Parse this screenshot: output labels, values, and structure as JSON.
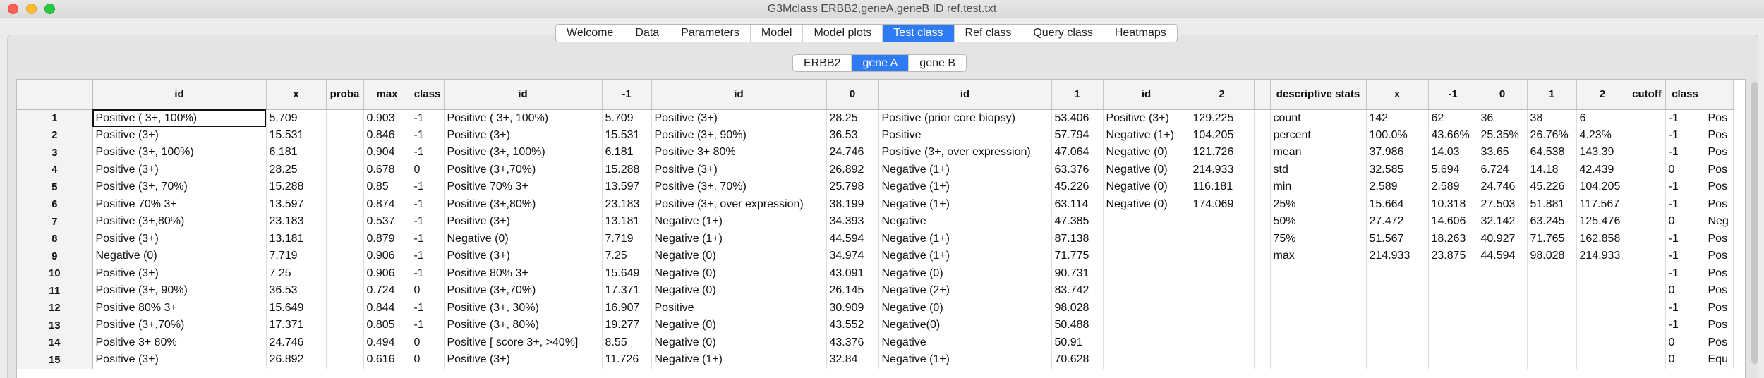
{
  "window": {
    "title": "G3Mclass ERBB2,geneA,geneB ID ref,test.txt"
  },
  "tabs": [
    {
      "label": "Welcome"
    },
    {
      "label": "Data"
    },
    {
      "label": "Parameters"
    },
    {
      "label": "Model"
    },
    {
      "label": "Model plots"
    },
    {
      "label": "Test class",
      "active": true
    },
    {
      "label": "Ref class"
    },
    {
      "label": "Query class"
    },
    {
      "label": "Heatmaps"
    }
  ],
  "subtabs": [
    {
      "label": "ERBB2"
    },
    {
      "label": "gene A",
      "active": true
    },
    {
      "label": "gene B"
    }
  ],
  "table": {
    "headers": [
      "",
      "id",
      "x",
      "proba",
      "max",
      "class",
      "id",
      "-1",
      "id",
      "0",
      "id",
      "1",
      "id",
      "2",
      "",
      "descriptive stats",
      "x",
      "-1",
      "0",
      "1",
      "2",
      "cutoff",
      "class",
      ""
    ],
    "rows": [
      [
        "1",
        "Positive ( 3+, 100%)",
        "5.709",
        "",
        "0.903",
        "-1",
        "Positive ( 3+, 100%)",
        "5.709",
        "Positive (3+)",
        "28.25",
        "Positive (prior core biopsy)",
        "53.406",
        "Positive (3+)",
        "129.225",
        "",
        "count",
        "142",
        "62",
        "36",
        "38",
        "6",
        "",
        "-1",
        "Pos"
      ],
      [
        "2",
        "Positive (3+)",
        "15.531",
        "",
        "0.846",
        "-1",
        "Positive (3+)",
        "15.531",
        "Positive (3+, 90%)",
        "36.53",
        "Positive",
        "57.794",
        "Negative (1+)",
        "104.205",
        "",
        "percent",
        "100.0%",
        "43.66%",
        "25.35%",
        "26.76%",
        "4.23%",
        "",
        "-1",
        "Pos"
      ],
      [
        "3",
        "Positive (3+, 100%)",
        "6.181",
        "",
        "0.904",
        "-1",
        "Positive (3+, 100%)",
        "6.181",
        "Positive 3+ 80%",
        "24.746",
        "Positive (3+, over expression)",
        "47.064",
        "Negative (0)",
        "121.726",
        "",
        "mean",
        "37.986",
        "14.03",
        "33.65",
        "64.538",
        "143.39",
        "",
        "-1",
        "Pos"
      ],
      [
        "4",
        "Positive (3+)",
        "28.25",
        "",
        "0.678",
        "0",
        "Positive (3+,70%)",
        "15.288",
        "Positive (3+)",
        "26.892",
        "Negative (1+)",
        "63.376",
        "Negative (0)",
        "214.933",
        "",
        "std",
        "32.585",
        "5.694",
        "6.724",
        "14.18",
        "42.439",
        "",
        "0",
        "Pos"
      ],
      [
        "5",
        "Positive (3+, 70%)",
        "15.288",
        "",
        "0.85",
        "-1",
        "Positive 70% 3+",
        "13.597",
        "Positive (3+, 70%)",
        "25.798",
        "Negative (1+)",
        "45.226",
        "Negative (0)",
        "116.181",
        "",
        "min",
        "2.589",
        "2.589",
        "24.746",
        "45.226",
        "104.205",
        "",
        "-1",
        "Pos"
      ],
      [
        "6",
        "Positive 70% 3+",
        "13.597",
        "",
        "0.874",
        "-1",
        "Positive (3+,80%)",
        "23.183",
        "Positive (3+, over expression)",
        "38.199",
        "Negative (1+)",
        "63.114",
        "Negative (0)",
        "174.069",
        "",
        "25%",
        "15.664",
        "10.318",
        "27.503",
        "51.881",
        "117.567",
        "",
        "-1",
        "Pos"
      ],
      [
        "7",
        "Positive (3+,80%)",
        "23.183",
        "",
        "0.537",
        "-1",
        "Positive (3+)",
        "13.181",
        "Negative (1+)",
        "34.393",
        "Negative",
        "47.385",
        "",
        "",
        "",
        "50%",
        "27.472",
        "14.606",
        "32.142",
        "63.245",
        "125.476",
        "",
        "0",
        "Neg"
      ],
      [
        "8",
        "Positive (3+)",
        "13.181",
        "",
        "0.879",
        "-1",
        "Negative (0)",
        "7.719",
        "Negative (1+)",
        "44.594",
        "Negative (1+)",
        "87.138",
        "",
        "",
        "",
        "75%",
        "51.567",
        "18.263",
        "40.927",
        "71.765",
        "162.858",
        "",
        "-1",
        "Pos"
      ],
      [
        "9",
        "Negative (0)",
        "7.719",
        "",
        "0.906",
        "-1",
        "Positive (3+)",
        "7.25",
        "Negative (0)",
        "34.974",
        "Negative (1+)",
        "71.775",
        "",
        "",
        "",
        "max",
        "214.933",
        "23.875",
        "44.594",
        "98.028",
        "214.933",
        "",
        "-1",
        "Pos"
      ],
      [
        "10",
        "Positive (3+)",
        "7.25",
        "",
        "0.906",
        "-1",
        "Positive 80% 3+",
        "15.649",
        "Negative (0)",
        "43.091",
        "Negative (0)",
        "90.731",
        "",
        "",
        "",
        "",
        "",
        "",
        "",
        "",
        "",
        "",
        "-1",
        "Pos"
      ],
      [
        "11",
        "Positive (3+, 90%)",
        "36.53",
        "",
        "0.724",
        "0",
        "Positive (3+,70%)",
        "17.371",
        "Negative (0)",
        "26.145",
        "Negative (2+)",
        "83.742",
        "",
        "",
        "",
        "",
        "",
        "",
        "",
        "",
        "",
        "",
        "0",
        "Pos"
      ],
      [
        "12",
        "Positive 80% 3+",
        "15.649",
        "",
        "0.844",
        "-1",
        "Positive (3+, 30%)",
        "16.907",
        "Positive",
        "30.909",
        "Negative (0)",
        "98.028",
        "",
        "",
        "",
        "",
        "",
        "",
        "",
        "",
        "",
        "",
        "-1",
        "Pos"
      ],
      [
        "13",
        "Positive (3+,70%)",
        "17.371",
        "",
        "0.805",
        "-1",
        "Positive (3+, 80%)",
        "19.277",
        "Negative (0)",
        "43.552",
        "Negative(0)",
        "50.488",
        "",
        "",
        "",
        "",
        "",
        "",
        "",
        "",
        "",
        "",
        "-1",
        "Pos"
      ],
      [
        "14",
        "Positive 3+ 80%",
        "24.746",
        "",
        "0.494",
        "0",
        "Positive [ score 3+, >40%]",
        "8.55",
        "Negative (0)",
        "43.376",
        "Negative",
        "50.91",
        "",
        "",
        "",
        "",
        "",
        "",
        "",
        "",
        "",
        "",
        "0",
        "Pos"
      ],
      [
        "15",
        "Positive (3+)",
        "26.892",
        "",
        "0.616",
        "0",
        "Positive (3+)",
        "11.726",
        "Negative (1+)",
        "32.84",
        "Negative (1+)",
        "70.628",
        "",
        "",
        "",
        "",
        "",
        "",
        "",
        "",
        "",
        "",
        "0",
        "Equ"
      ]
    ]
  }
}
